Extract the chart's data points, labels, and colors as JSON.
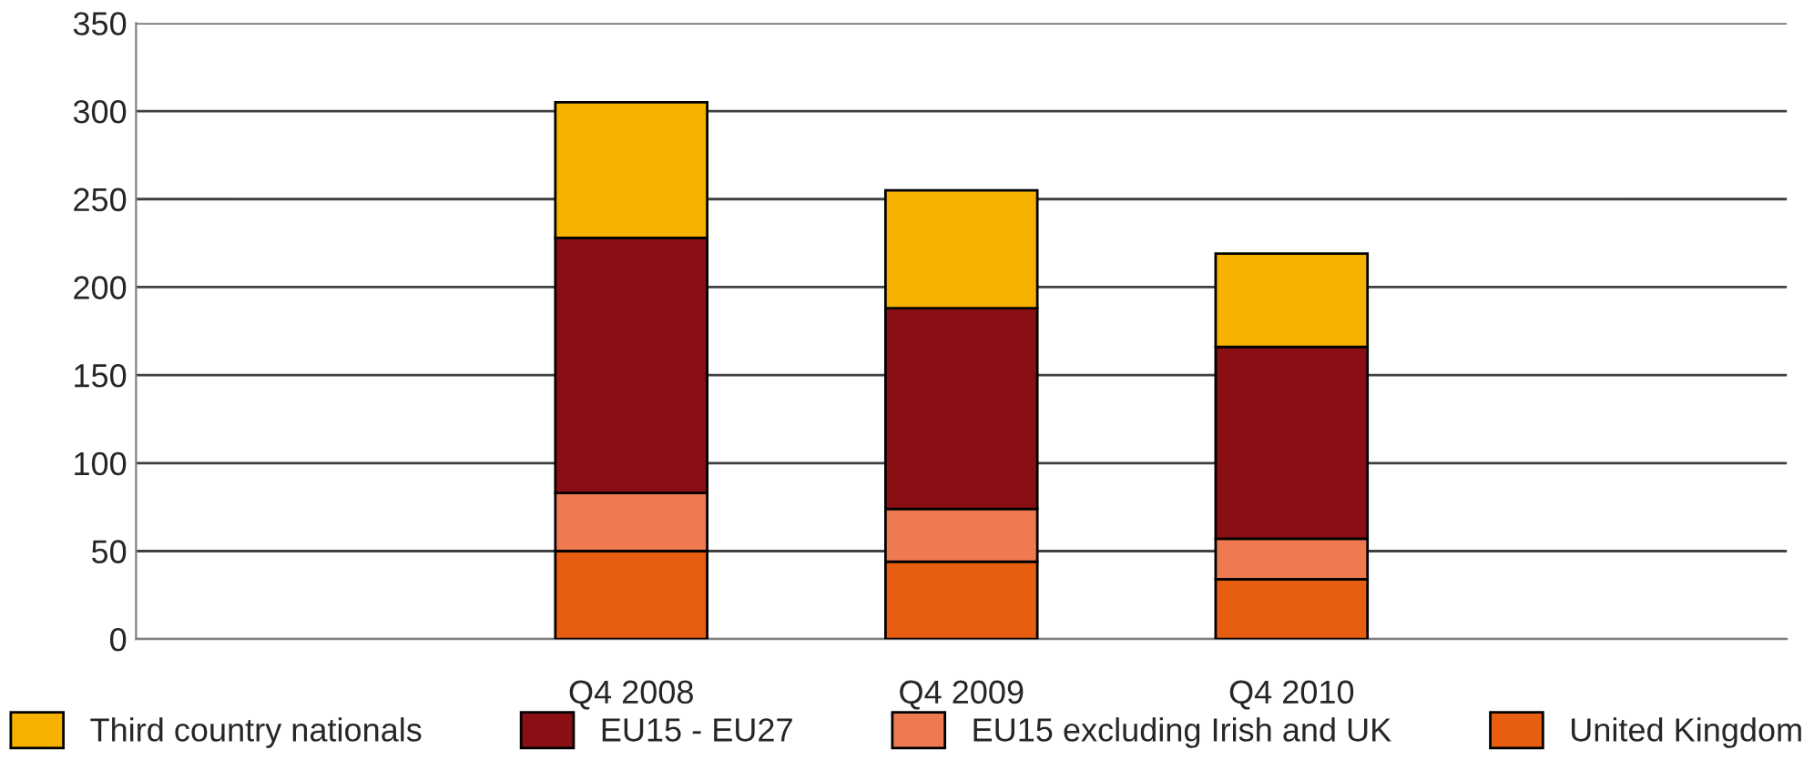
{
  "chart_data": {
    "type": "bar",
    "stacked": true,
    "categories": [
      null,
      "Q4 2008",
      "Q4 2009",
      "Q4 2010",
      null
    ],
    "series": [
      {
        "name": "United Kingdom",
        "color": "#e85e10",
        "values": [
          null,
          50,
          44,
          34,
          null
        ]
      },
      {
        "name": "EU15 excluding Irish and UK",
        "color": "#ef7a52",
        "values": [
          null,
          33,
          30,
          23,
          null
        ]
      },
      {
        "name": "EU15 - EU27",
        "color": "#8a0f14",
        "values": [
          null,
          145,
          114,
          109,
          null
        ]
      },
      {
        "name": "Third country nationals",
        "color": "#f7b200",
        "values": [
          null,
          77,
          67,
          53,
          null
        ]
      }
    ],
    "ylim": [
      0,
      350
    ],
    "yticks": [
      0,
      50,
      100,
      150,
      200,
      250,
      300,
      350
    ],
    "grid": "y",
    "legend": "bottom"
  }
}
